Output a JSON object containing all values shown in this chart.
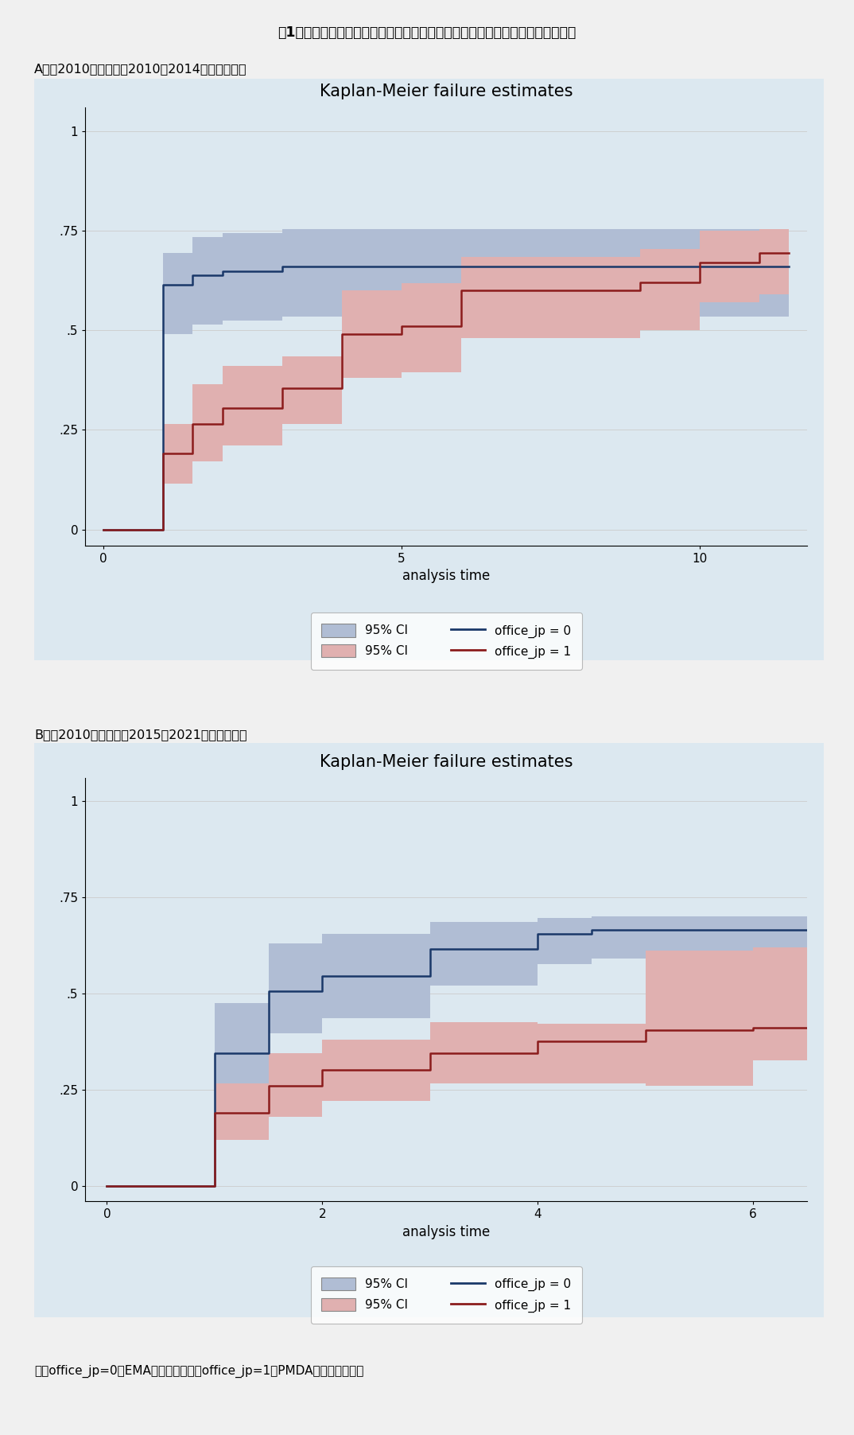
{
  "title": "図1　米国承認が先行している新薬の日欧における累積承認確率のダイナミクス",
  "subtitle_a": "A：（2010年代前半：2010－2014に米国承認）",
  "subtitle_b": "B：（2010年代後半：2015－2021に米国承認）",
  "footnote": "注）office_jp=0はEMAの承認を示し、office_jp=1はPMDAの承認を示す。",
  "km_title": "Kaplan-Meier failure estimates",
  "xlabel": "analysis time",
  "plot_a": {
    "xlim": [
      -0.3,
      11.8
    ],
    "ylim": [
      -0.04,
      1.06
    ],
    "xticks": [
      0,
      5,
      10
    ],
    "yticks": [
      0,
      0.25,
      0.5,
      0.75,
      1
    ],
    "yticklabels": [
      "0",
      ".25",
      ".5",
      ".75",
      "1"
    ],
    "blue_x": [
      0,
      1,
      1,
      1.5,
      1.5,
      2,
      2,
      3,
      3,
      11.5
    ],
    "blue_y": [
      0,
      0,
      0.615,
      0.615,
      0.638,
      0.638,
      0.648,
      0.648,
      0.66,
      0.66
    ],
    "blue_ci_upper_x": [
      0,
      1,
      1,
      1.5,
      1.5,
      2,
      2,
      3,
      3,
      11.5
    ],
    "blue_ci_upper_y": [
      0,
      0,
      0.695,
      0.695,
      0.735,
      0.735,
      0.745,
      0.745,
      0.755,
      0.755
    ],
    "blue_ci_lower_x": [
      0,
      1,
      1,
      1.5,
      1.5,
      2,
      2,
      3,
      3,
      11.5
    ],
    "blue_ci_lower_y": [
      0,
      0,
      0.49,
      0.49,
      0.515,
      0.515,
      0.525,
      0.525,
      0.535,
      0.535
    ],
    "red_x": [
      0,
      1,
      1,
      1.5,
      1.5,
      2,
      2,
      3,
      3,
      4,
      4,
      5,
      5,
      6,
      6,
      9,
      9,
      10,
      10,
      11,
      11,
      11.5
    ],
    "red_y": [
      0,
      0,
      0.19,
      0.19,
      0.265,
      0.265,
      0.305,
      0.305,
      0.355,
      0.355,
      0.49,
      0.49,
      0.51,
      0.51,
      0.6,
      0.6,
      0.62,
      0.62,
      0.67,
      0.67,
      0.695,
      0.695
    ],
    "red_ci_upper_x": [
      0,
      1,
      1,
      1.5,
      1.5,
      2,
      2,
      3,
      3,
      4,
      4,
      5,
      5,
      6,
      6,
      9,
      9,
      10,
      10,
      11,
      11,
      11.5
    ],
    "red_ci_upper_y": [
      0,
      0,
      0.265,
      0.265,
      0.365,
      0.365,
      0.41,
      0.41,
      0.435,
      0.435,
      0.6,
      0.6,
      0.618,
      0.618,
      0.685,
      0.685,
      0.705,
      0.705,
      0.75,
      0.75,
      0.755,
      0.755
    ],
    "red_ci_lower_x": [
      0,
      1,
      1,
      1.5,
      1.5,
      2,
      2,
      3,
      3,
      4,
      4,
      5,
      5,
      6,
      6,
      9,
      9,
      10,
      10,
      11,
      11,
      11.5
    ],
    "red_ci_lower_y": [
      0,
      0,
      0.115,
      0.115,
      0.17,
      0.17,
      0.21,
      0.21,
      0.265,
      0.265,
      0.38,
      0.38,
      0.395,
      0.395,
      0.48,
      0.48,
      0.5,
      0.5,
      0.57,
      0.57,
      0.59,
      0.59
    ]
  },
  "plot_b": {
    "xlim": [
      -0.2,
      6.5
    ],
    "ylim": [
      -0.04,
      1.06
    ],
    "xticks": [
      0,
      2,
      4,
      6
    ],
    "yticks": [
      0,
      0.25,
      0.5,
      0.75,
      1
    ],
    "yticklabels": [
      "0",
      ".25",
      ".5",
      ".75",
      "1"
    ],
    "blue_x": [
      0,
      1,
      1,
      1.5,
      1.5,
      2,
      2,
      3,
      3,
      4,
      4,
      4.5,
      4.5,
      6.5
    ],
    "blue_y": [
      0,
      0,
      0.345,
      0.345,
      0.505,
      0.505,
      0.545,
      0.545,
      0.615,
      0.615,
      0.655,
      0.655,
      0.665,
      0.665
    ],
    "blue_ci_upper_x": [
      0,
      1,
      1,
      1.5,
      1.5,
      2,
      2,
      3,
      3,
      4,
      4,
      4.5,
      4.5,
      6.5
    ],
    "blue_ci_upper_y": [
      0,
      0,
      0.475,
      0.475,
      0.63,
      0.63,
      0.655,
      0.655,
      0.685,
      0.685,
      0.695,
      0.695,
      0.7,
      0.7
    ],
    "blue_ci_lower_x": [
      0,
      1,
      1,
      1.5,
      1.5,
      2,
      2,
      3,
      3,
      4,
      4,
      4.5,
      4.5,
      6.5
    ],
    "blue_ci_lower_y": [
      0,
      0,
      0.225,
      0.225,
      0.395,
      0.395,
      0.435,
      0.435,
      0.52,
      0.52,
      0.575,
      0.575,
      0.59,
      0.59
    ],
    "red_x": [
      0,
      1,
      1,
      1.5,
      1.5,
      2,
      2,
      3,
      3,
      4,
      4,
      5,
      5,
      6,
      6,
      6.5
    ],
    "red_y": [
      0,
      0,
      0.19,
      0.19,
      0.26,
      0.26,
      0.3,
      0.3,
      0.345,
      0.345,
      0.375,
      0.375,
      0.405,
      0.405,
      0.41,
      0.41
    ],
    "red_ci_upper_x": [
      0,
      1,
      1,
      1.5,
      1.5,
      2,
      2,
      3,
      3,
      4,
      4,
      5,
      5,
      6,
      6,
      6.5
    ],
    "red_ci_upper_y": [
      0,
      0,
      0.265,
      0.265,
      0.345,
      0.345,
      0.38,
      0.38,
      0.425,
      0.425,
      0.42,
      0.42,
      0.61,
      0.61,
      0.62,
      0.62
    ],
    "red_ci_lower_x": [
      0,
      1,
      1,
      1.5,
      1.5,
      2,
      2,
      3,
      3,
      4,
      4,
      5,
      5,
      6,
      6,
      6.5
    ],
    "red_ci_lower_y": [
      0,
      0,
      0.12,
      0.12,
      0.18,
      0.18,
      0.22,
      0.22,
      0.265,
      0.265,
      0.265,
      0.265,
      0.26,
      0.26,
      0.325,
      0.325
    ]
  },
  "blue_color": "#1a3869",
  "red_color": "#8b1c1c",
  "blue_ci_color": "#b0bdd4",
  "red_ci_color": "#e0b0b0",
  "outer_bg": "#f0f0f0",
  "panel_bg": "#dce8f0"
}
